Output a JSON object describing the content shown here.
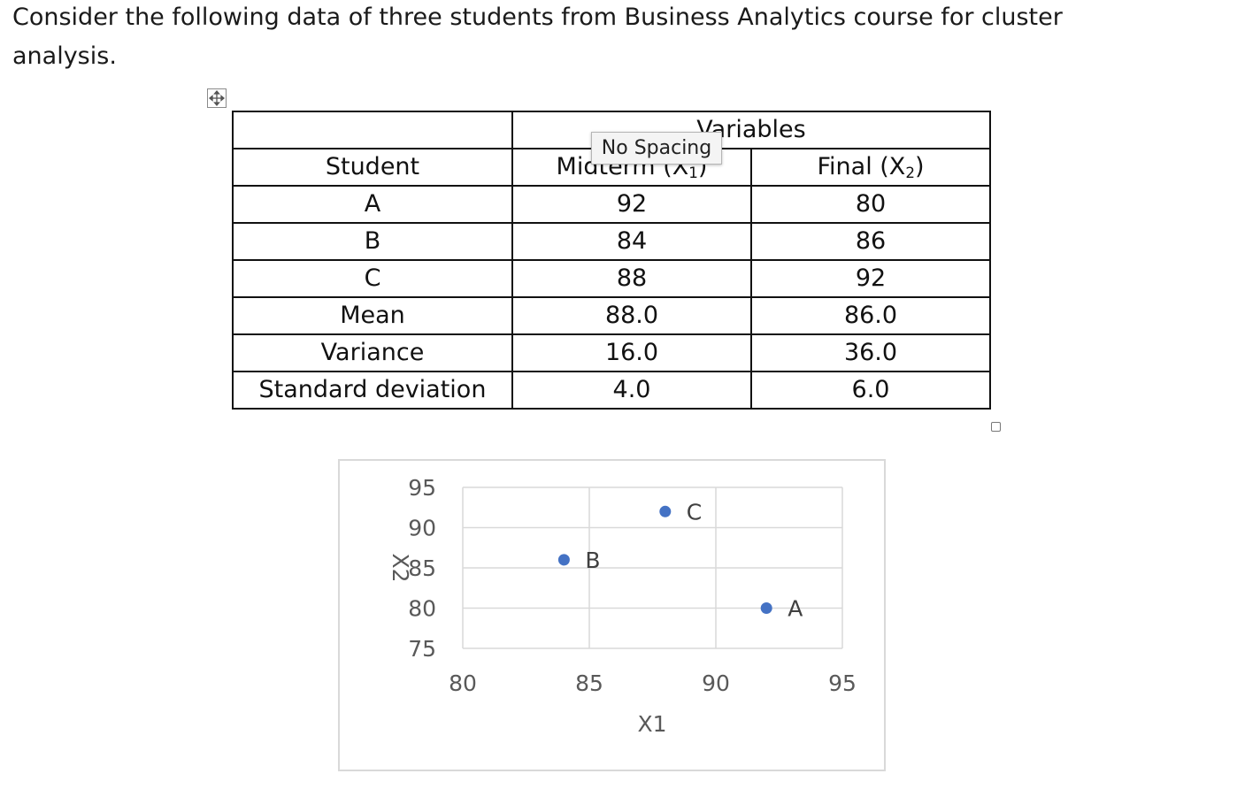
{
  "intro_text": "Consider the following data of three students from Business Analytics course for cluster analysis.",
  "tooltip": "No Spacing",
  "table": {
    "group_header": "Variables",
    "student_header": "Student",
    "midterm_header": {
      "prefix": "Midterm (X",
      "sub": "1",
      "suffix": ")"
    },
    "final_header": {
      "prefix": "Final (X",
      "sub": "2",
      "suffix": ")"
    },
    "rows": [
      {
        "label": "A",
        "midterm": "92",
        "final": "80"
      },
      {
        "label": "B",
        "midterm": "84",
        "final": "86"
      },
      {
        "label": "C",
        "midterm": "88",
        "final": "92"
      },
      {
        "label": "Mean",
        "midterm": "88.0",
        "final": "86.0"
      },
      {
        "label": "Variance",
        "midterm": "16.0",
        "final": "36.0"
      },
      {
        "label": "Standard deviation",
        "midterm": "4.0",
        "final": "6.0"
      }
    ]
  },
  "chart_data": {
    "type": "scatter",
    "xlabel": "X1",
    "ylabel": "X2",
    "xlim": [
      80,
      95
    ],
    "ylim": [
      75,
      95
    ],
    "xticks": [
      80,
      85,
      90,
      95
    ],
    "yticks": [
      75,
      80,
      85,
      90,
      95
    ],
    "grid": true,
    "point_color": "#4472C4",
    "points": [
      {
        "label": "A",
        "x": 92,
        "y": 80
      },
      {
        "label": "B",
        "x": 84,
        "y": 86
      },
      {
        "label": "C",
        "x": 88,
        "y": 92
      }
    ]
  }
}
